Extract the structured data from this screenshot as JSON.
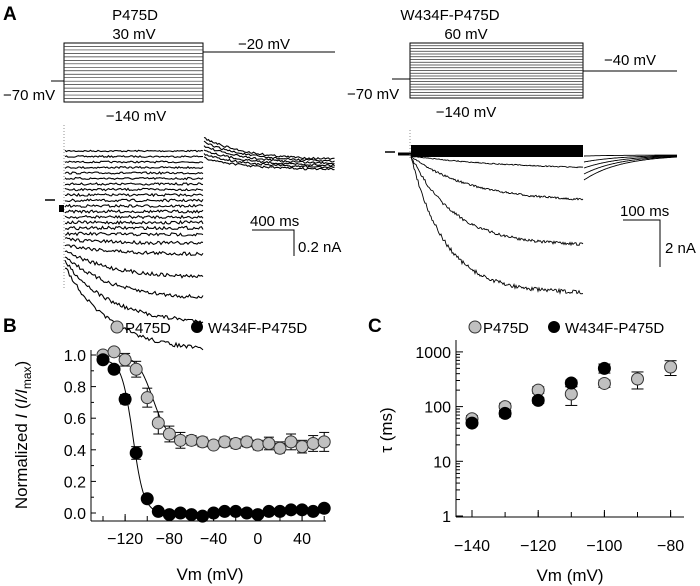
{
  "panel_a": {
    "label": "A",
    "left": {
      "title": "P475D",
      "step_max": "30 mV",
      "step_min": "−140 mV",
      "holding": "−70 mV",
      "tail": "−20 mV",
      "scale_time": "400 ms",
      "scale_current": "0.2 nA"
    },
    "right": {
      "title": "W434F-P475D",
      "step_max": "60 mV",
      "step_min": "−140 mV",
      "holding": "−70 mV",
      "tail": "−40 mV",
      "scale_time": "100 ms",
      "scale_current": "2 nA"
    }
  },
  "colors": {
    "p475d": "#c0c0c0",
    "w434f": "#000000"
  },
  "chart_data": [
    {
      "panel": "B",
      "type": "scatter",
      "xlabel": "Vm (mV)",
      "ylabel_prefix": "Normalized ",
      "ylabel_italic": "I",
      "ylabel_mid": " (",
      "ylabel_ratio": "I/I",
      "ylabel_sub": "max",
      "ylabel_end": ")",
      "xlim": [
        -145,
        62
      ],
      "ylim": [
        -0.05,
        1.05
      ],
      "xticks": [
        -120,
        -80,
        -40,
        0,
        40
      ],
      "xtick_labels": [
        "−120",
        "−80",
        "−40",
        "0",
        "40"
      ],
      "yticks": [
        0.0,
        0.2,
        0.4,
        0.6,
        0.8,
        1.0
      ],
      "ytick_labels": [
        "0.0",
        "0.2",
        "0.4",
        "0.6",
        "0.8",
        "1.0"
      ],
      "legend": "top",
      "x": [
        -140,
        -130,
        -120,
        -110,
        -100,
        -90,
        -80,
        -70,
        -60,
        -50,
        -40,
        -30,
        -20,
        -10,
        0,
        10,
        20,
        30,
        40,
        50,
        60
      ],
      "series": [
        {
          "name": "P475D",
          "color": "#c0c0c0",
          "values": [
            1.0,
            1.02,
            0.97,
            0.91,
            0.73,
            0.57,
            0.5,
            0.46,
            0.46,
            0.45,
            0.43,
            0.45,
            0.44,
            0.45,
            0.43,
            0.44,
            0.41,
            0.45,
            0.42,
            0.44,
            0.45
          ],
          "errors": [
            0.02,
            0.02,
            0.04,
            0.05,
            0.06,
            0.07,
            0.05,
            0.05,
            0.03,
            0.03,
            0.02,
            0.03,
            0.03,
            0.03,
            0.03,
            0.04,
            0.03,
            0.05,
            0.04,
            0.05,
            0.06
          ],
          "fit": {
            "bottom": 0.45,
            "top": 1.0,
            "v_half": -95,
            "slope": 7
          }
        },
        {
          "name": "W434F-P475D",
          "color": "#000000",
          "values": [
            0.97,
            0.91,
            0.72,
            0.38,
            0.09,
            0.01,
            -0.01,
            0.0,
            -0.01,
            -0.02,
            0.0,
            0.01,
            0.01,
            0.0,
            -0.01,
            0.01,
            0.01,
            0.02,
            0.02,
            0.01,
            0.03
          ],
          "errors": [
            0.01,
            0.02,
            0.03,
            0.04,
            0.02,
            0.01,
            0.01,
            0.01,
            0.01,
            0.01,
            0.01,
            0.01,
            0.01,
            0.01,
            0.01,
            0.01,
            0.01,
            0.01,
            0.01,
            0.01,
            0.01
          ],
          "fit": {
            "bottom": 0.0,
            "top": 0.97,
            "v_half": -113,
            "slope": 5
          }
        }
      ]
    },
    {
      "panel": "C",
      "type": "scatter",
      "xlabel": "Vm (mV)",
      "ylabel": "τ (ms)",
      "yscale": "log",
      "xlim": [
        -146,
        -76
      ],
      "ylim": [
        1,
        1000
      ],
      "xticks": [
        -140,
        -120,
        -100,
        -80
      ],
      "xtick_labels": [
        "−140",
        "−120",
        "−100",
        "−80"
      ],
      "yticks": [
        1,
        10,
        100,
        1000
      ],
      "ytick_labels": [
        "1",
        "10",
        "100",
        "1000"
      ],
      "legend": "top",
      "series": [
        {
          "name": "P475D",
          "color": "#c0c0c0",
          "x": [
            -140,
            -130,
            -120,
            -110,
            -100,
            -90,
            -80
          ],
          "values": [
            60,
            100,
            200,
            170,
            265,
            320,
            530
          ],
          "err_low": [
            52,
            85,
            175,
            105,
            225,
            210,
            370
          ],
          "err_high": [
            68,
            115,
            230,
            230,
            305,
            430,
            690
          ]
        },
        {
          "name": "W434F-P475D",
          "color": "#000000",
          "x": [
            -140,
            -130,
            -120,
            -110,
            -100
          ],
          "values": [
            50,
            75,
            130,
            270,
            500
          ],
          "err_low": [
            45,
            65,
            115,
            235,
            410
          ],
          "err_high": [
            56,
            85,
            145,
            305,
            600
          ]
        }
      ]
    }
  ]
}
